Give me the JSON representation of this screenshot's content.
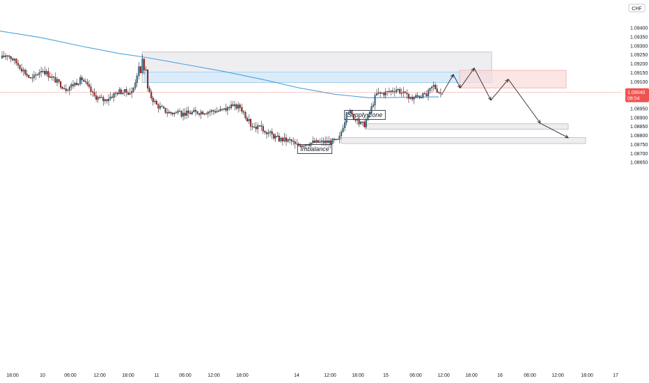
{
  "chart_data": {
    "type": "candlestick",
    "currency_badge": "CHF",
    "current_price": "1.09040",
    "countdown": "08:54",
    "x_ticks": [
      "18:00",
      "10",
      "06:00",
      "12:00",
      "18:00",
      "11",
      "06:00",
      "12:00",
      "18:00",
      "14",
      "12:00",
      "18:00",
      "15",
      "06:00",
      "12:00",
      "18:00",
      "16",
      "06:00",
      "12:00",
      "18:00",
      "17"
    ],
    "y_ticks": [
      "1.09400",
      "1.09350",
      "1.09300",
      "1.09250",
      "1.09200",
      "1.09150",
      "1.09100",
      "1.09050",
      "1.09000",
      "1.08950",
      "1.08900",
      "1.08850",
      "1.08800",
      "1.08750",
      "1.08700",
      "1.08650"
    ],
    "y_range": [
      1.0863,
      1.0946
    ],
    "zones": [
      {
        "label": "Supply Zone",
        "kind": "supply",
        "price_top": 1.09265,
        "price_bottom": 1.09095
      },
      {
        "label": "Imbalance",
        "kind": "imbalance",
        "price_top": 1.09153,
        "price_bottom": 1.09095
      },
      {
        "label": "",
        "kind": "red-zone",
        "price_top": 1.09163,
        "price_bottom": 1.09065
      },
      {
        "label": "",
        "kind": "demand",
        "price_top": 1.08865,
        "price_bottom": 1.08835
      },
      {
        "label": "",
        "kind": "demand",
        "price_top": 1.08788,
        "price_bottom": 1.08755
      }
    ],
    "projection_path_prices": [
      1.09025,
      1.0914,
      1.09065,
      1.09175,
      1.09085,
      1.0918,
      1.08997,
      1.09113,
      1.08868,
      1.08787
    ],
    "moving_average_start": 1.09382,
    "moving_average_end": 1.09015,
    "candle_range": {
      "low": 1.087,
      "high": 1.0927
    }
  },
  "colors": {
    "up": "#26a69a",
    "up_body": "#3d7fa6",
    "down": "#c62828",
    "ma": "#4aa3df",
    "price_line": "#ef5350",
    "supply_fill": "#ebebee",
    "imbalance_fill": "#d6ebfb",
    "red_zone_fill": "#fbdcdc",
    "demand_fill": "#ebebee"
  }
}
